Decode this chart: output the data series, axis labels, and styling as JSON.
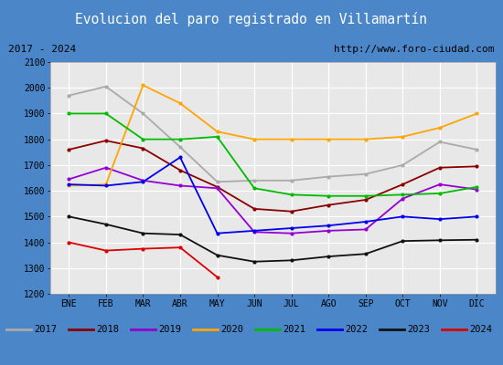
{
  "title": "Evolucion del paro registrado en Villamartín",
  "subtitle_left": "2017 - 2024",
  "subtitle_right": "http://www.foro-ciudad.com",
  "months": [
    "ENE",
    "FEB",
    "MAR",
    "ABR",
    "MAY",
    "JUN",
    "JUL",
    "AGO",
    "SEP",
    "OCT",
    "NOV",
    "DIC"
  ],
  "ylim": [
    1200,
    2100
  ],
  "yticks": [
    1200,
    1300,
    1400,
    1500,
    1600,
    1700,
    1800,
    1900,
    2000,
    2100
  ],
  "series": {
    "2017": {
      "color": "#aaaaaa",
      "values": [
        1970,
        2005,
        1900,
        1770,
        1635,
        1640,
        1640,
        1655,
        1665,
        1700,
        1790,
        1760
      ]
    },
    "2018": {
      "color": "#8b0000",
      "values": [
        1760,
        1795,
        1765,
        1680,
        1615,
        1530,
        1520,
        1545,
        1565,
        1625,
        1690,
        1695
      ]
    },
    "2019": {
      "color": "#9400d3",
      "values": [
        1645,
        1690,
        1640,
        1620,
        1610,
        1440,
        1435,
        1445,
        1450,
        1570,
        1625,
        1605
      ]
    },
    "2020": {
      "color": "#ffa500",
      "values": [
        1620,
        1625,
        2010,
        1940,
        1830,
        1800,
        1800,
        1800,
        1800,
        1810,
        1845,
        1900
      ]
    },
    "2021": {
      "color": "#00bb00",
      "values": [
        1900,
        1900,
        1800,
        1800,
        1810,
        1610,
        1585,
        1580,
        1580,
        1585,
        1590,
        1615
      ]
    },
    "2022": {
      "color": "#0000ee",
      "values": [
        1625,
        1620,
        1635,
        1730,
        1435,
        1445,
        1455,
        1465,
        1480,
        1500,
        1490,
        1500
      ]
    },
    "2023": {
      "color": "#111111",
      "values": [
        1500,
        1470,
        1435,
        1430,
        1350,
        1325,
        1330,
        1345,
        1355,
        1405,
        1408,
        1410
      ]
    },
    "2024": {
      "color": "#dd0000",
      "values": [
        1400,
        1368,
        1375,
        1380,
        1265,
        null,
        null,
        null,
        null,
        null,
        null,
        null
      ]
    }
  },
  "title_bg_color": "#4a86c8",
  "title_text_color": "#ffffff",
  "plot_bg_color": "#e8e8e8",
  "grid_color": "#ffffff",
  "border_color": "#4a86c8",
  "subtitle_bg": "#d8d8d8",
  "legend_bg": "#e0e0e0"
}
